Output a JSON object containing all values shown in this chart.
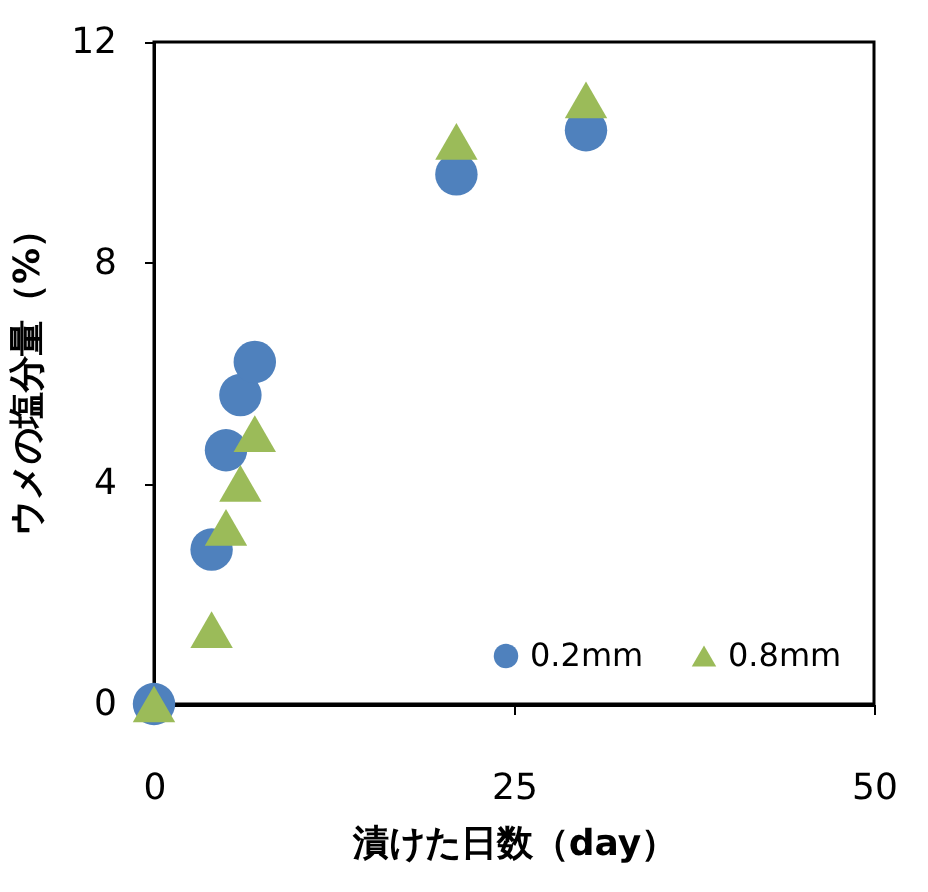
{
  "chart_data": {
    "type": "scatter",
    "xlabel": "漬けた日数（day）",
    "ylabel": "ウメの塩分量（%）",
    "xlim": [
      0,
      50
    ],
    "xticks": [
      0,
      25,
      50
    ],
    "ylim": [
      0,
      12
    ],
    "yticks": [
      0,
      4,
      8,
      12
    ],
    "grid": false,
    "legend": "bottom right",
    "series": [
      {
        "name": "0.2mm",
        "color": "#4f81bd",
        "marker": "circle",
        "x": [
          0,
          4,
          5,
          6,
          7,
          21,
          30
        ],
        "values": [
          0,
          2.8,
          4.6,
          5.6,
          6.2,
          9.6,
          10.4
        ]
      },
      {
        "name": "0.8mm",
        "color": "#9bbb59",
        "marker": "triangle",
        "x": [
          0,
          4,
          5,
          6,
          7,
          21,
          30
        ],
        "values": [
          0,
          1.35,
          3.2,
          4.0,
          4.9,
          10.2,
          10.95
        ]
      }
    ]
  }
}
